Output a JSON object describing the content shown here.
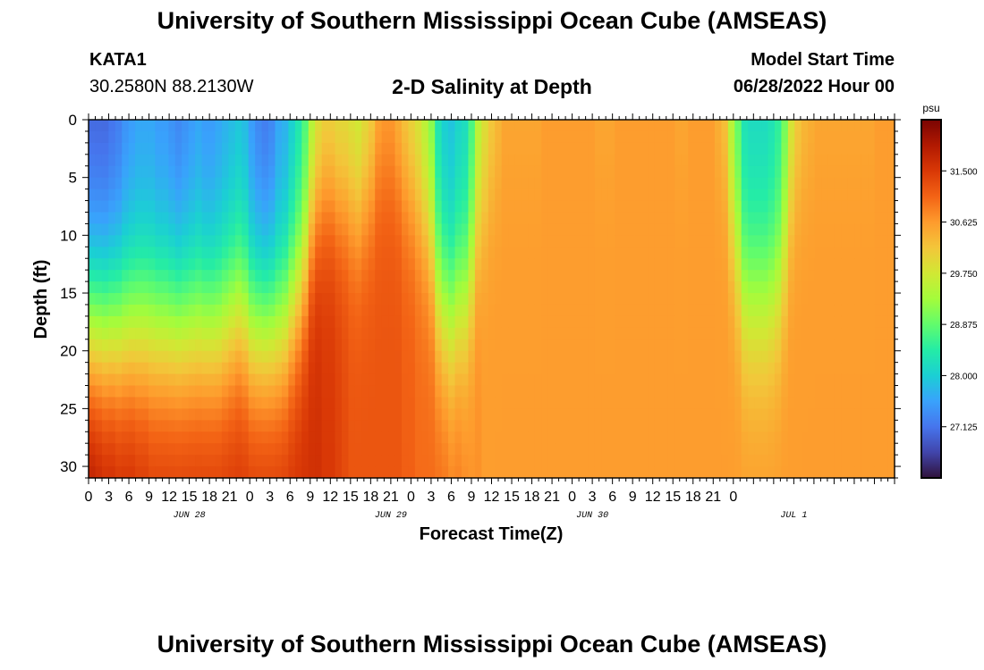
{
  "header": {
    "title": "University of Southern Mississippi Ocean Cube (AMSEAS)",
    "station_id": "KATA1",
    "station_coords": "30.2580N  88.2130W",
    "plot_title": "2-D Salinity at Depth",
    "model_start_label": "Model Start Time",
    "model_start_value": "06/28/2022 Hour 00"
  },
  "footer": {
    "title": "University of Southern Mississippi Ocean Cube (AMSEAS)"
  },
  "colorbar": {
    "unit": "psu",
    "ticks": [
      "31.500",
      "30.625",
      "29.750",
      "28.875",
      "28.000",
      "27.125"
    ],
    "tick_values": [
      31.5,
      30.625,
      29.75,
      28.875,
      28.0,
      27.125
    ],
    "range": [
      26.25,
      32.375
    ],
    "colors": [
      "#30123b",
      "#4145ab",
      "#4675ed",
      "#39a2fc",
      "#1bcfd4",
      "#24eca6",
      "#61fc6c",
      "#a4fc3b",
      "#d1e834",
      "#f3c63a",
      "#fe9b2d",
      "#f36315",
      "#d93806",
      "#b11901",
      "#7a0403"
    ]
  },
  "chart_data": {
    "type": "heatmap",
    "title": "2-D Salinity at Depth",
    "xlabel": "Forecast Time(Z)",
    "ylabel": "Depth (ft)",
    "value_unit": "psu",
    "x_hours": [
      0,
      120
    ],
    "y_depth_ft": [
      0,
      31
    ],
    "y_reversed": true,
    "xticks": [
      "0",
      "3",
      "6",
      "9",
      "12",
      "15",
      "18",
      "21",
      "0",
      "3",
      "6",
      "9",
      "12",
      "15",
      "18",
      "21",
      "0",
      "3",
      "6",
      "9",
      "12",
      "15",
      "18",
      "21",
      "0",
      "3",
      "6",
      "9",
      "12",
      "15",
      "18",
      "21",
      "0"
    ],
    "date_labels": [
      "JUN 28",
      "JUN 29",
      "JUN 30",
      "JUL 1"
    ],
    "date_label_hours": [
      15,
      45,
      75,
      105
    ],
    "yticks": [
      0,
      5,
      10,
      15,
      20,
      25,
      30
    ],
    "grid": false,
    "surface_salinity_psu": [
      26.9,
      26.9,
      26.9,
      27.0,
      27.1,
      27.3,
      27.4,
      27.5,
      27.5,
      27.5,
      27.4,
      27.4,
      27.3,
      27.2,
      27.3,
      27.4,
      27.5,
      27.4,
      27.4,
      27.5,
      27.6,
      27.7,
      27.8,
      27.7,
      27.4,
      27.2,
      27.1,
      27.2,
      27.5,
      27.6,
      27.9,
      28.2,
      28.6,
      29.3,
      29.7,
      29.9,
      29.9,
      29.8,
      29.8,
      29.7,
      29.6,
      29.8,
      30.0,
      30.4,
      30.5,
      30.5,
      30.3,
      30.1,
      29.9,
      29.7,
      29.4,
      29.0,
      28.2,
      27.9,
      27.8,
      28.0,
      28.1,
      28.6,
      29.4,
      29.8,
      30.1,
      30.3,
      30.5,
      30.5,
      30.5,
      30.5,
      30.5,
      30.5,
      30.6,
      30.6,
      30.6,
      30.6,
      30.6,
      30.6,
      30.6,
      30.6,
      30.5,
      30.5,
      30.5,
      30.6,
      30.6,
      30.6,
      30.6,
      30.6,
      30.6,
      30.6,
      30.6,
      30.6,
      30.5,
      30.5,
      30.6,
      30.6,
      30.6,
      30.6,
      30.4,
      30.2,
      29.4,
      28.8,
      28.2,
      28.1,
      28.1,
      28.1,
      28.2,
      28.4,
      28.9,
      29.7,
      30.1,
      30.3,
      30.4,
      30.5,
      30.5,
      30.5,
      30.5,
      30.5,
      30.5,
      30.5,
      30.5,
      30.5,
      30.6,
      30.6,
      30.6
    ],
    "bottom_salinity_psu": [
      32.1,
      32.0,
      31.9,
      31.9,
      31.8,
      31.8,
      31.8,
      31.7,
      31.7,
      31.6,
      31.6,
      31.6,
      31.6,
      31.6,
      31.6,
      31.6,
      31.6,
      31.6,
      31.6,
      31.6,
      31.6,
      31.6,
      31.6,
      31.6,
      31.6,
      31.6,
      31.6,
      31.6,
      31.6,
      31.6,
      31.6,
      31.6,
      31.6,
      31.6,
      31.6,
      31.5,
      31.5,
      31.4,
      31.3,
      31.2,
      31.2,
      31.2,
      31.2,
      31.2,
      31.2,
      31.2,
      31.2,
      31.1,
      31.1,
      31.0,
      31.0,
      31.0,
      31.0,
      31.0,
      30.9,
      30.9,
      30.8,
      30.7,
      30.7,
      30.6,
      30.6,
      30.6,
      30.6,
      30.6,
      30.6,
      30.6,
      30.6,
      30.6,
      30.6,
      30.6,
      30.6,
      30.6,
      30.6,
      30.6,
      30.6,
      30.6,
      30.6,
      30.6,
      30.6,
      30.6,
      30.6,
      30.6,
      30.6,
      30.6,
      30.6,
      30.6,
      30.6,
      30.6,
      30.6,
      30.6,
      30.6,
      30.6,
      30.6,
      30.6,
      30.6,
      30.6,
      30.6,
      30.6,
      30.6,
      30.6,
      30.6,
      30.6,
      30.6,
      30.6,
      30.6,
      30.6,
      30.6,
      30.6,
      30.6,
      30.6,
      30.6,
      30.6,
      30.6,
      30.6,
      30.6,
      30.6,
      30.6,
      30.6,
      30.6,
      30.6,
      30.6
    ]
  }
}
